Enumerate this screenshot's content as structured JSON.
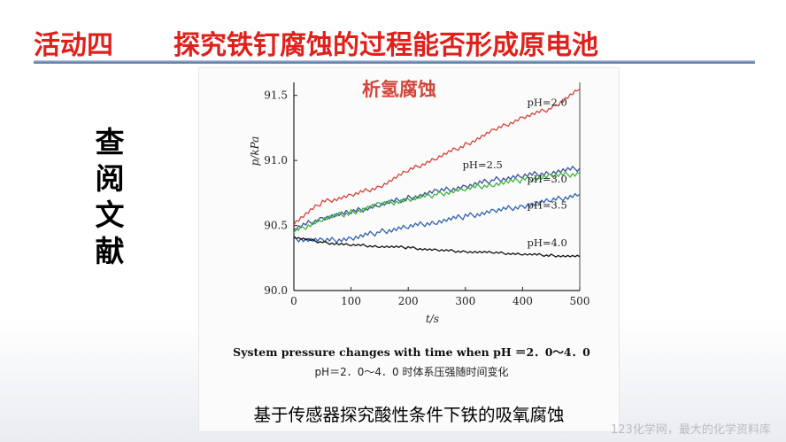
{
  "slide": {
    "activity": "活动四",
    "title": "探究铁钉腐蚀的过程能否形成原电池",
    "side_text": [
      "查",
      "阅",
      "文",
      "献"
    ],
    "watermark": "123化学网，最大的化学资料库"
  },
  "figure": {
    "caption_en": "System pressure changes with time when pH ＝2．0～4．0",
    "caption_cn": "pH＝2．0～4．0 时体系压强随时间变化",
    "caption_bottom": "基于传感器探究酸性条件下铁的吸氧腐蚀"
  },
  "colors": {
    "title": "#e0201b",
    "rule": "#5c7ba9",
    "series_red": "#d2453c",
    "series_navy": "#3b4f9c",
    "series_green": "#3fb23f",
    "series_blue": "#2f63b0",
    "series_black": "#111111"
  },
  "chart_data": {
    "type": "line",
    "title": "析氢腐蚀",
    "xlabel": "t/s",
    "ylabel": "p/kPa",
    "xlim": [
      0,
      500
    ],
    "ylim": [
      90.0,
      91.6
    ],
    "xticks": [
      0,
      100,
      200,
      300,
      400,
      500
    ],
    "yticks": [
      90.0,
      90.5,
      91.0,
      91.5
    ],
    "grid": false,
    "series": [
      {
        "name": "pH=2.0",
        "color": "#d2453c",
        "x": [
          0,
          50,
          100,
          150,
          200,
          250,
          300,
          350,
          400,
          450,
          500
        ],
        "y": [
          90.52,
          90.68,
          90.73,
          90.8,
          90.92,
          91.02,
          91.12,
          91.23,
          91.33,
          91.4,
          91.55
        ]
      },
      {
        "name": "pH=2.5",
        "color": "#3b4f9c",
        "x": [
          0,
          50,
          100,
          150,
          200,
          250,
          300,
          350,
          400,
          450,
          500
        ],
        "y": [
          90.47,
          90.56,
          90.6,
          90.66,
          90.71,
          90.76,
          90.8,
          90.85,
          90.88,
          90.91,
          90.94
        ]
      },
      {
        "name": "pH=3.0",
        "color": "#3fb23f",
        "x": [
          0,
          50,
          100,
          150,
          200,
          250,
          300,
          350,
          400,
          450,
          500
        ],
        "y": [
          90.45,
          90.55,
          90.6,
          90.66,
          90.7,
          90.74,
          90.78,
          90.82,
          90.85,
          90.88,
          90.9
        ]
      },
      {
        "name": "pH=3.5",
        "color": "#2f63b0",
        "x": [
          0,
          50,
          100,
          150,
          200,
          250,
          300,
          350,
          400,
          450,
          500
        ],
        "y": [
          90.4,
          90.38,
          90.4,
          90.45,
          90.49,
          90.53,
          90.57,
          90.61,
          90.65,
          90.69,
          90.74
        ]
      },
      {
        "name": "pH=4.0",
        "color": "#111111",
        "x": [
          0,
          50,
          100,
          150,
          200,
          250,
          300,
          350,
          400,
          450,
          500
        ],
        "y": [
          90.41,
          90.37,
          90.35,
          90.34,
          90.33,
          90.31,
          90.3,
          90.29,
          90.28,
          90.27,
          90.26
        ]
      }
    ]
  }
}
